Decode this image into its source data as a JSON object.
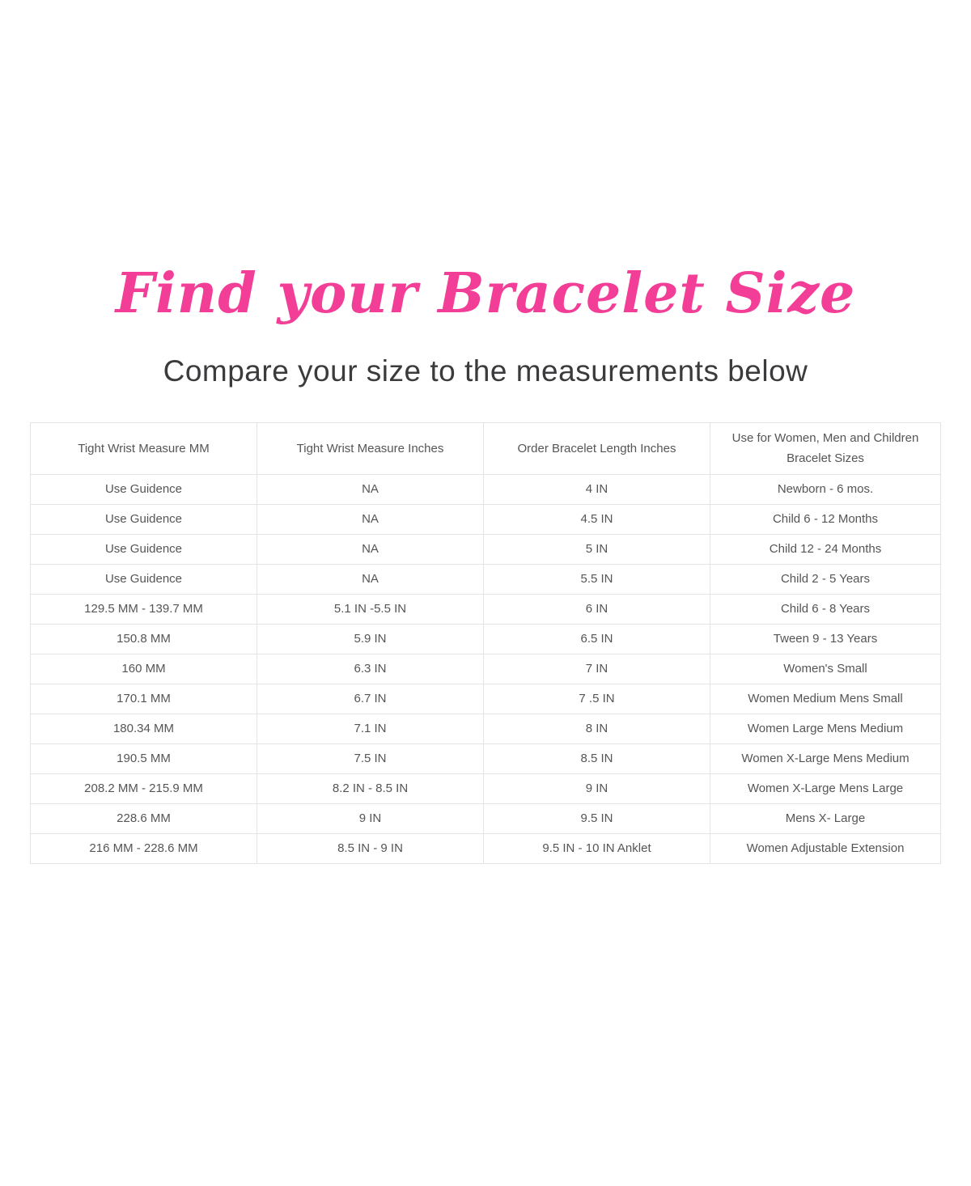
{
  "page": {
    "title": "Find your Bracelet Size",
    "subtitle": "Compare your size to the measurements below"
  },
  "colors": {
    "title_pink": "#f23e96",
    "subtitle_gray": "#3b3b3d",
    "table_text_gray": "#555557",
    "table_border_gray": "#e4e4e4",
    "background": "#ffffff"
  },
  "table": {
    "headers": [
      "Tight Wrist Measure MM",
      "Tight Wrist Measure Inches",
      "Order Bracelet Length Inches",
      "Use for Women, Men and Children Bracelet Sizes"
    ],
    "rows": [
      [
        "Use Guidence",
        "NA",
        "4 IN",
        "Newborn - 6 mos."
      ],
      [
        "Use Guidence",
        "NA",
        "4.5 IN",
        "Child 6 - 12 Months"
      ],
      [
        "Use Guidence",
        "NA",
        "5 IN",
        "Child 12 - 24 Months"
      ],
      [
        "Use Guidence",
        "NA",
        "5.5 IN",
        "Child 2 - 5 Years"
      ],
      [
        "129.5 MM - 139.7 MM",
        "5.1 IN -5.5 IN",
        "6 IN",
        "Child 6 - 8 Years"
      ],
      [
        "150.8 MM",
        "5.9 IN",
        "6.5 IN",
        "Tween 9 - 13 Years"
      ],
      [
        "160 MM",
        "6.3 IN",
        "7 IN",
        "Women's Small"
      ],
      [
        "170.1 MM",
        "6.7 IN",
        "7 .5 IN",
        "Women Medium Mens Small"
      ],
      [
        "180.34 MM",
        "7.1 IN",
        "8 IN",
        "Women Large Mens Medium"
      ],
      [
        "190.5 MM",
        "7.5 IN",
        "8.5 IN",
        "Women X-Large Mens Medium"
      ],
      [
        "208.2 MM - 215.9 MM",
        "8.2 IN - 8.5 IN",
        "9 IN",
        "Women X-Large Mens Large"
      ],
      [
        "228.6 MM",
        "9 IN",
        "9.5 IN",
        "Mens X- Large"
      ],
      [
        "216 MM - 228.6 MM",
        "8.5 IN - 9 IN",
        "9.5 IN - 10 IN Anklet",
        "Women Adjustable Extension"
      ]
    ]
  }
}
